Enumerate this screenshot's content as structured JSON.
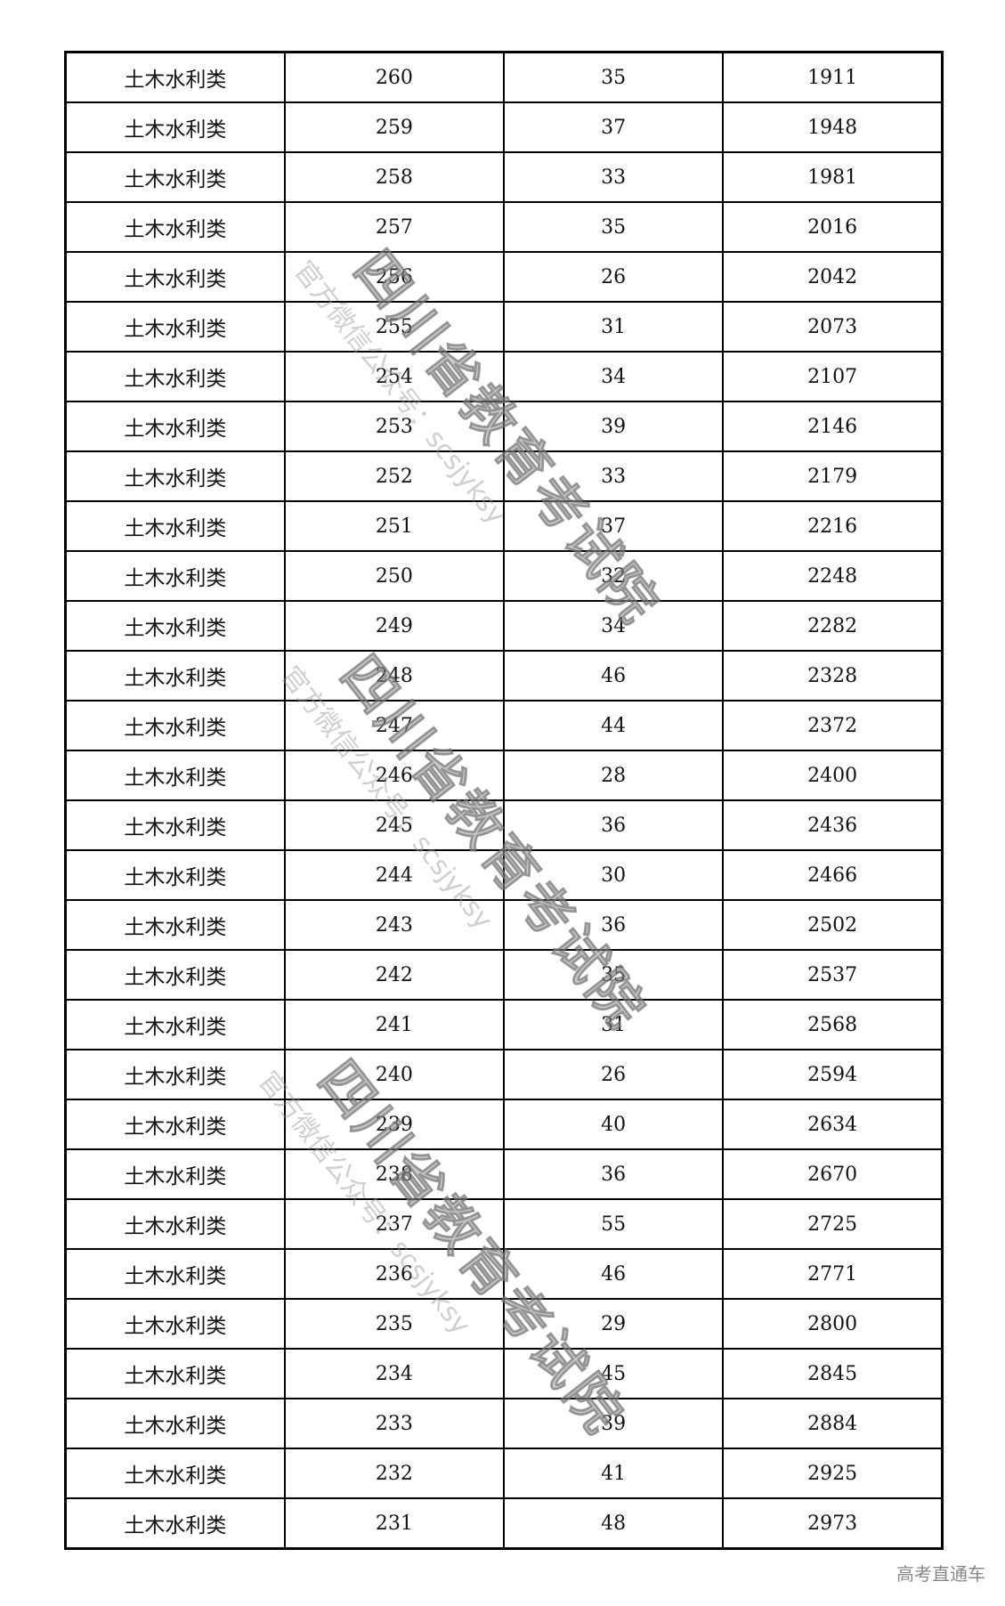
{
  "table": {
    "rows": [
      [
        "土木水利类",
        "260",
        "35",
        "1911"
      ],
      [
        "土木水利类",
        "259",
        "37",
        "1948"
      ],
      [
        "土木水利类",
        "258",
        "33",
        "1981"
      ],
      [
        "土木水利类",
        "257",
        "35",
        "2016"
      ],
      [
        "土木水利类",
        "256",
        "26",
        "2042"
      ],
      [
        "土木水利类",
        "255",
        "31",
        "2073"
      ],
      [
        "土木水利类",
        "254",
        "34",
        "2107"
      ],
      [
        "土木水利类",
        "253",
        "39",
        "2146"
      ],
      [
        "土木水利类",
        "252",
        "33",
        "2179"
      ],
      [
        "土木水利类",
        "251",
        "37",
        "2216"
      ],
      [
        "土木水利类",
        "250",
        "32",
        "2248"
      ],
      [
        "土木水利类",
        "249",
        "34",
        "2282"
      ],
      [
        "土木水利类",
        "248",
        "46",
        "2328"
      ],
      [
        "土木水利类",
        "247",
        "44",
        "2372"
      ],
      [
        "土木水利类",
        "246",
        "28",
        "2400"
      ],
      [
        "土木水利类",
        "245",
        "36",
        "2436"
      ],
      [
        "土木水利类",
        "244",
        "30",
        "2466"
      ],
      [
        "土木水利类",
        "243",
        "36",
        "2502"
      ],
      [
        "土木水利类",
        "242",
        "35",
        "2537"
      ],
      [
        "土木水利类",
        "241",
        "31",
        "2568"
      ],
      [
        "土木水利类",
        "240",
        "26",
        "2594"
      ],
      [
        "土木水利类",
        "239",
        "40",
        "2634"
      ],
      [
        "土木水利类",
        "238",
        "36",
        "2670"
      ],
      [
        "土木水利类",
        "237",
        "55",
        "2725"
      ],
      [
        "土木水利类",
        "236",
        "46",
        "2771"
      ],
      [
        "土木水利类",
        "235",
        "29",
        "2800"
      ],
      [
        "土木水利类",
        "234",
        "45",
        "2845"
      ],
      [
        "土木水利类",
        "233",
        "39",
        "2884"
      ],
      [
        "土木水利类",
        "232",
        "41",
        "2925"
      ],
      [
        "土木水利类",
        "231",
        "48",
        "2973"
      ]
    ]
  },
  "watermark": {
    "title": "四川省教育考试院",
    "subtitle": "官方微信公众号：scsjyksy"
  },
  "footer": {
    "text": "高考直通车"
  }
}
